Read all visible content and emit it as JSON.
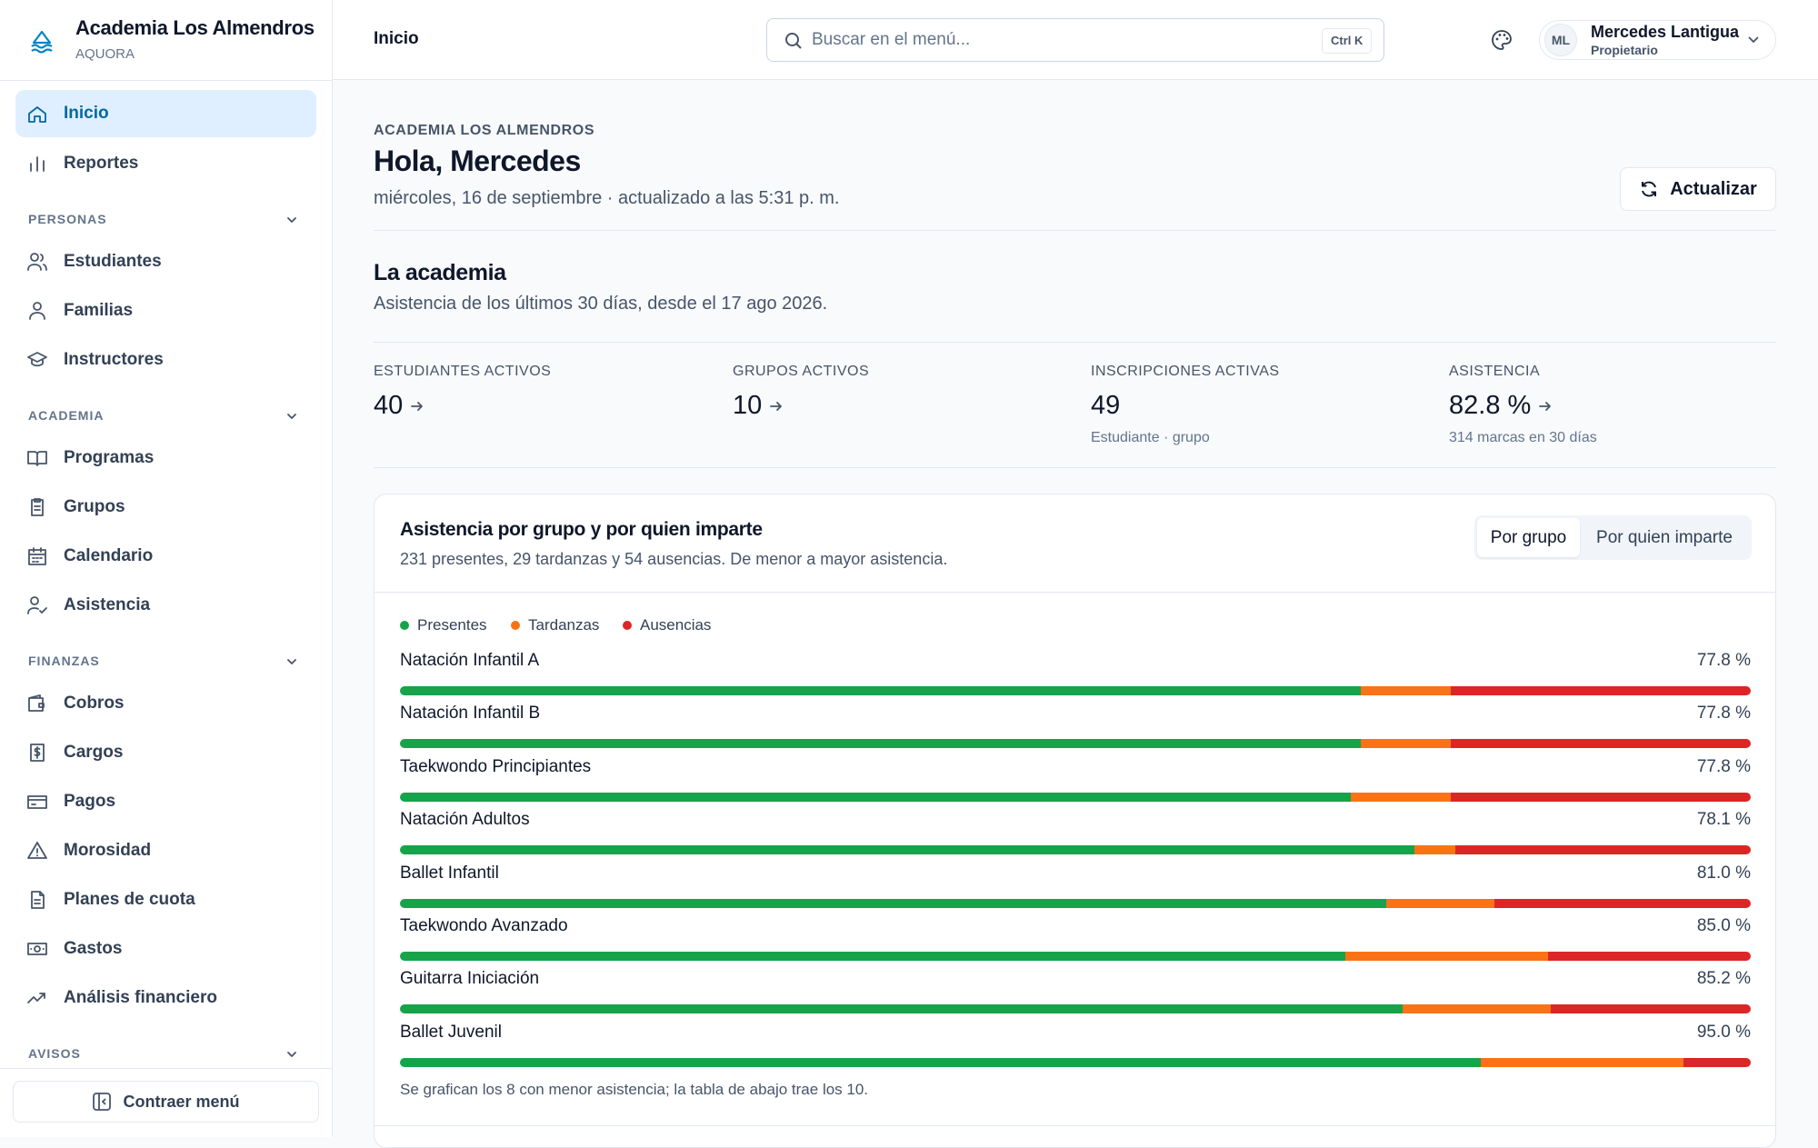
{
  "sidebar": {
    "brand": "Academia Los Almendros",
    "org": "AQUORA",
    "groups": [
      {
        "items": [
          "Inicio",
          "Reportes"
        ]
      },
      {
        "heading": "PERSONAS",
        "items": [
          "Estudiantes",
          "Familias",
          "Instructores"
        ]
      },
      {
        "heading": "ACADEMIA",
        "items": [
          "Programas",
          "Grupos",
          "Calendario",
          "Asistencia"
        ]
      },
      {
        "heading": "FINANZAS",
        "items": [
          "Cobros",
          "Cargos",
          "Pagos",
          "Morosidad",
          "Planes de cuota",
          "Gastos",
          "Análisis financiero"
        ]
      },
      {
        "heading": "AVISOS",
        "items": []
      }
    ],
    "collapse": "Contraer menú"
  },
  "header": {
    "page": "Inicio",
    "search": "Buscar en el menú...",
    "shortcut": "Ctrl K",
    "user_initials": "ML",
    "user_name": "Mercedes Lantigua",
    "user_role": "Propietario"
  },
  "greeting": {
    "eyebrow": "ACADEMIA LOS ALMENDROS",
    "title": "Hola, Mercedes",
    "date": "miércoles, 16 de septiembre · actualizado a las 5:31 p. m.",
    "refresh": "Actualizar"
  },
  "summary": {
    "title": "La academia",
    "subtitle": "Asistencia de los últimos 30 días, desde el 17 ago 2026.",
    "stats": [
      {
        "label": "ESTUDIANTES ACTIVOS",
        "value": "40",
        "link": true
      },
      {
        "label": "GRUPOS ACTIVOS",
        "value": "10",
        "link": true
      },
      {
        "label": "INSCRIPCIONES ACTIVAS",
        "value": "49",
        "sub": "Estudiante · grupo",
        "link": false
      },
      {
        "label": "ASISTENCIA",
        "value": "82.8 %",
        "sub": "314 marcas en 30 días",
        "link": true
      }
    ]
  },
  "chart_data": {
    "type": "stacked-bar",
    "title": "Asistencia por grupo y por quien imparte",
    "subtitle": "231 presentes, 29 tardanzas y 54 ausencias. De menor a mayor asistencia.",
    "toggle": [
      "Por grupo",
      "Por quien imparte"
    ],
    "categories": [
      "Natación Infantil A",
      "Natación Infantil B",
      "Taekwondo Principiantes",
      "Natación Adultos",
      "Ballet Infantil",
      "Taekwondo Avanzado",
      "Guitarra Iniciación",
      "Ballet Juvenil"
    ],
    "attendance_labels": [
      "77.8 %",
      "77.8 %",
      "77.8 %",
      "78.1 %",
      "81.0 %",
      "85.0 %",
      "85.2 %",
      "95.0 %"
    ],
    "series": [
      {
        "name": "Presentes",
        "color": "#16a34a",
        "values": [
          71.1,
          71.1,
          70.4,
          75.1,
          73.0,
          70.0,
          74.2,
          80.0
        ]
      },
      {
        "name": "Tardanzas",
        "color": "#f97316",
        "values": [
          6.7,
          6.7,
          7.4,
          3.0,
          8.0,
          15.0,
          11.0,
          15.0
        ]
      },
      {
        "name": "Ausencias",
        "color": "#dc2626",
        "values": [
          22.2,
          22.2,
          22.2,
          21.9,
          19.0,
          15.0,
          14.8,
          5.0
        ]
      }
    ],
    "note": "Se grafican los 8 con menor asistencia; la tabla de abajo trae los 10."
  }
}
